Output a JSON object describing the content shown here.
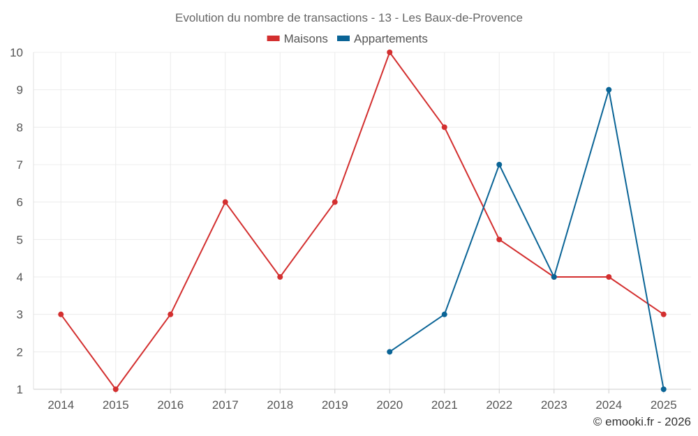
{
  "chart_data": {
    "type": "line",
    "title": "Evolution du nombre de transactions - 13 - Les Baux-de-Provence",
    "categories": [
      "2014",
      "2015",
      "2016",
      "2017",
      "2018",
      "2019",
      "2020",
      "2021",
      "2022",
      "2023",
      "2024",
      "2025"
    ],
    "series": [
      {
        "name": "Maisons",
        "color": "#d32f2f",
        "values": [
          3,
          1,
          3,
          6,
          4,
          6,
          10,
          8,
          5,
          4,
          4,
          3
        ]
      },
      {
        "name": "Appartements",
        "color": "#0a6496",
        "values": [
          null,
          null,
          null,
          null,
          null,
          null,
          2,
          3,
          7,
          4,
          9,
          1
        ]
      }
    ],
    "ylim": [
      1,
      10
    ],
    "yticks": [
      1,
      2,
      3,
      4,
      5,
      6,
      7,
      8,
      9,
      10
    ],
    "xlabel": "",
    "ylabel": "",
    "grid": true,
    "legend": "top-center"
  },
  "footer": {
    "credit": "© emooki.fr - 2026"
  }
}
